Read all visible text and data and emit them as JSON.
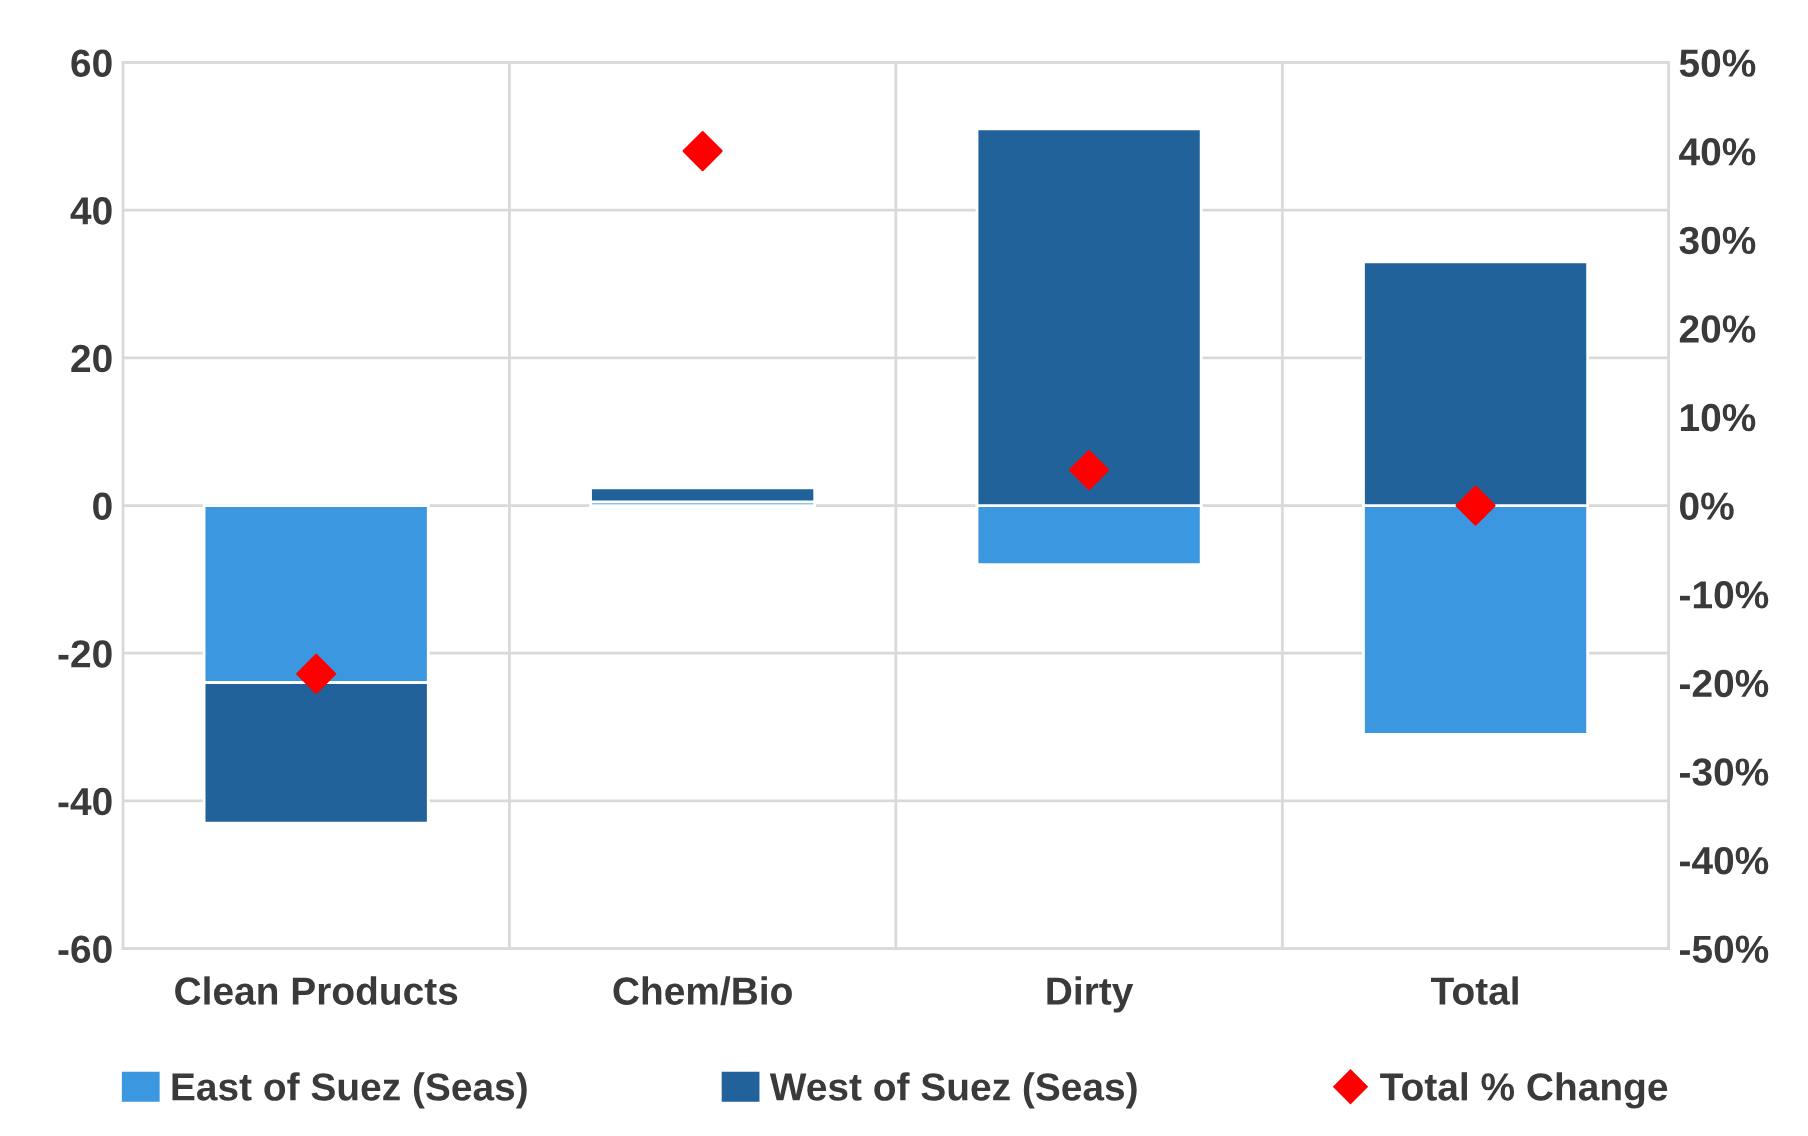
{
  "chart_data": {
    "type": "bar",
    "stacked": true,
    "categories": [
      "Clean Products",
      "Chem/Bio",
      "Dirty",
      "Total"
    ],
    "series": [
      {
        "name": "East of Suez (Seas)",
        "color": "#3b97df",
        "values": [
          -24,
          0.5,
          -8,
          -31
        ]
      },
      {
        "name": "West of Suez (Seas)",
        "color": "#22629a",
        "values": [
          -19,
          1.9,
          51,
          33
        ]
      },
      {
        "name": "Total % Change",
        "type": "scatter",
        "axis": "y2",
        "marker": "diamond",
        "color": "#ff0000",
        "values": [
          -19,
          40,
          4,
          0
        ]
      }
    ],
    "ylim": [
      -60,
      60
    ],
    "yticks": [
      -60,
      -40,
      -20,
      0,
      20,
      40,
      60
    ],
    "y2lim": [
      -50,
      50
    ],
    "y2ticks": [
      {
        "value": -50,
        "label": "-50%"
      },
      {
        "value": -40,
        "label": "-40%"
      },
      {
        "value": -30,
        "label": "-30%"
      },
      {
        "value": -20,
        "label": "-20%"
      },
      {
        "value": -10,
        "label": "-10%"
      },
      {
        "value": 0,
        "label": "0%"
      },
      {
        "value": 10,
        "label": "10%"
      },
      {
        "value": 20,
        "label": "20%"
      },
      {
        "value": 30,
        "label": "30%"
      },
      {
        "value": 40,
        "label": "40%"
      },
      {
        "value": 50,
        "label": "50%"
      }
    ],
    "grid": true,
    "legend": "bottom"
  }
}
